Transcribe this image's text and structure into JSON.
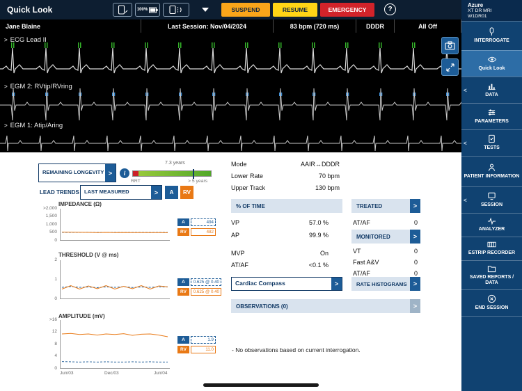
{
  "icons": {
    "chevron_right": ">",
    "chevron_left": "<",
    "info": "i",
    "help": "?"
  },
  "header": {
    "title": "Quick Look",
    "battery_level": "100%",
    "suspend_label": "SUSPEND",
    "resume_label": "RESUME",
    "emergency_label": "EMERGENCY",
    "device_brand": "Azure",
    "device_model": "XT DR MRI",
    "device_serial": "W1DR01"
  },
  "statusbar": {
    "patient_name": "Jane Blaine",
    "last_session": "Last Session: Nov/04/2024",
    "rate": "83 bpm (720 ms)",
    "mode": "DDDR",
    "detection": "All Off"
  },
  "ecg": {
    "leads": [
      "ECG Lead II",
      "EGM 2: RVtip/RVring",
      "EGM 1: Atip/Aring"
    ]
  },
  "sidebar": {
    "items": [
      {
        "label": "INTERROGATE"
      },
      {
        "label": "Quick Look"
      },
      {
        "label": "DATA"
      },
      {
        "label": "PARAMETERS"
      },
      {
        "label": "TESTS"
      },
      {
        "label": "PATIENT INFORMATION"
      },
      {
        "label": "SESSION"
      },
      {
        "label": "ANALYZER"
      },
      {
        "label": "ESTRIP RECORDER"
      },
      {
        "label": "SAVED REPORTS / DATA"
      },
      {
        "label": "END SESSION"
      }
    ]
  },
  "longevity": {
    "label": "REMAINING LONGEVITY",
    "estimate": "7.3 years",
    "rrt_label": "RRT",
    "scale_right_label": "> 5 years"
  },
  "lead_trends": {
    "title": "LEAD TRENDS",
    "last_measured_label": "LAST MEASURED",
    "a_label": "A",
    "rv_label": "RV"
  },
  "chart_data": {
    "x_ticks": [
      "Jun/03",
      "Dec/03",
      "Jun/04"
    ],
    "impedance": {
      "type": "line",
      "title": "IMPEDANCE (Ω)",
      "y_ticks": [
        ">2,000",
        "1,500",
        "1,000",
        "500",
        "0"
      ],
      "y_max": 2000,
      "a_last": "494",
      "rv_last": "482",
      "a_series": [
        505,
        500,
        498,
        503,
        497,
        501,
        499,
        502,
        498,
        500,
        496,
        499,
        494
      ],
      "rv_series": [
        520,
        512,
        505,
        498,
        492,
        500,
        488,
        495,
        485,
        490,
        483,
        486,
        482
      ]
    },
    "threshold": {
      "type": "line",
      "title": "THRESHOLD (V @ ms)",
      "y_ticks": [
        "2",
        "1",
        "0"
      ],
      "y_max": 2,
      "a_last": "0.625 @ 0.40",
      "rv_last": "0.625 @ 0.40",
      "a_series": [
        0.6,
        0.65,
        0.6,
        0.62,
        0.58,
        0.63,
        0.6,
        0.64,
        0.59,
        0.62,
        0.6,
        0.63,
        0.625
      ],
      "rv_series": [
        0.5,
        0.7,
        0.5,
        0.68,
        0.52,
        0.7,
        0.5,
        0.66,
        0.52,
        0.7,
        0.5,
        0.68,
        0.625
      ]
    },
    "amplitude": {
      "type": "line",
      "title": "AMPLITUDE (mV)",
      "y_ticks": [
        ">16",
        "12",
        "8",
        "4",
        "0"
      ],
      "y_max": 16,
      "a_last": "1.9",
      "rv_last": "11.0",
      "a_series": [
        2.1,
        2,
        1.9,
        2,
        1.9,
        2,
        1.9,
        1.9,
        2,
        1.9,
        2,
        1.9,
        1.9
      ],
      "rv_series": [
        12,
        12.2,
        11.8,
        12,
        11.6,
        12,
        11.8,
        12.1,
        11.5,
        11.9,
        12,
        11.6,
        11
      ]
    }
  },
  "parameters_summary": {
    "rows": [
      {
        "label": "Mode",
        "value": "AAIR↔DDDR"
      },
      {
        "label": "Lower Rate",
        "value": "70 bpm"
      },
      {
        "label": "Upper Track",
        "value": "130 bpm"
      }
    ]
  },
  "percent_of_time": {
    "title": "% OF TIME",
    "rows": [
      {
        "label": "VP",
        "value": "57.0 %"
      },
      {
        "label": "AP",
        "value": "99.9 %"
      }
    ],
    "rows2": [
      {
        "label": "MVP",
        "value": "On"
      },
      {
        "label": "AT/AF",
        "value": "<0.1 %"
      }
    ]
  },
  "treated": {
    "title": "TREATED",
    "rows": [
      {
        "label": "AT/AF",
        "value": "0"
      }
    ]
  },
  "monitored": {
    "title": "MONITORED",
    "rows": [
      {
        "label": "VT",
        "value": "0"
      },
      {
        "label": "Fast A&V",
        "value": "0"
      },
      {
        "label": "AT/AF",
        "value": "0"
      }
    ]
  },
  "actions": {
    "cardiac_compass": "Cardiac Compass",
    "rate_histograms": "RATE HISTOGRAMS",
    "observations": "OBSERVATIONS (0)"
  },
  "observations_note": "- No observations based on current interrogation."
}
